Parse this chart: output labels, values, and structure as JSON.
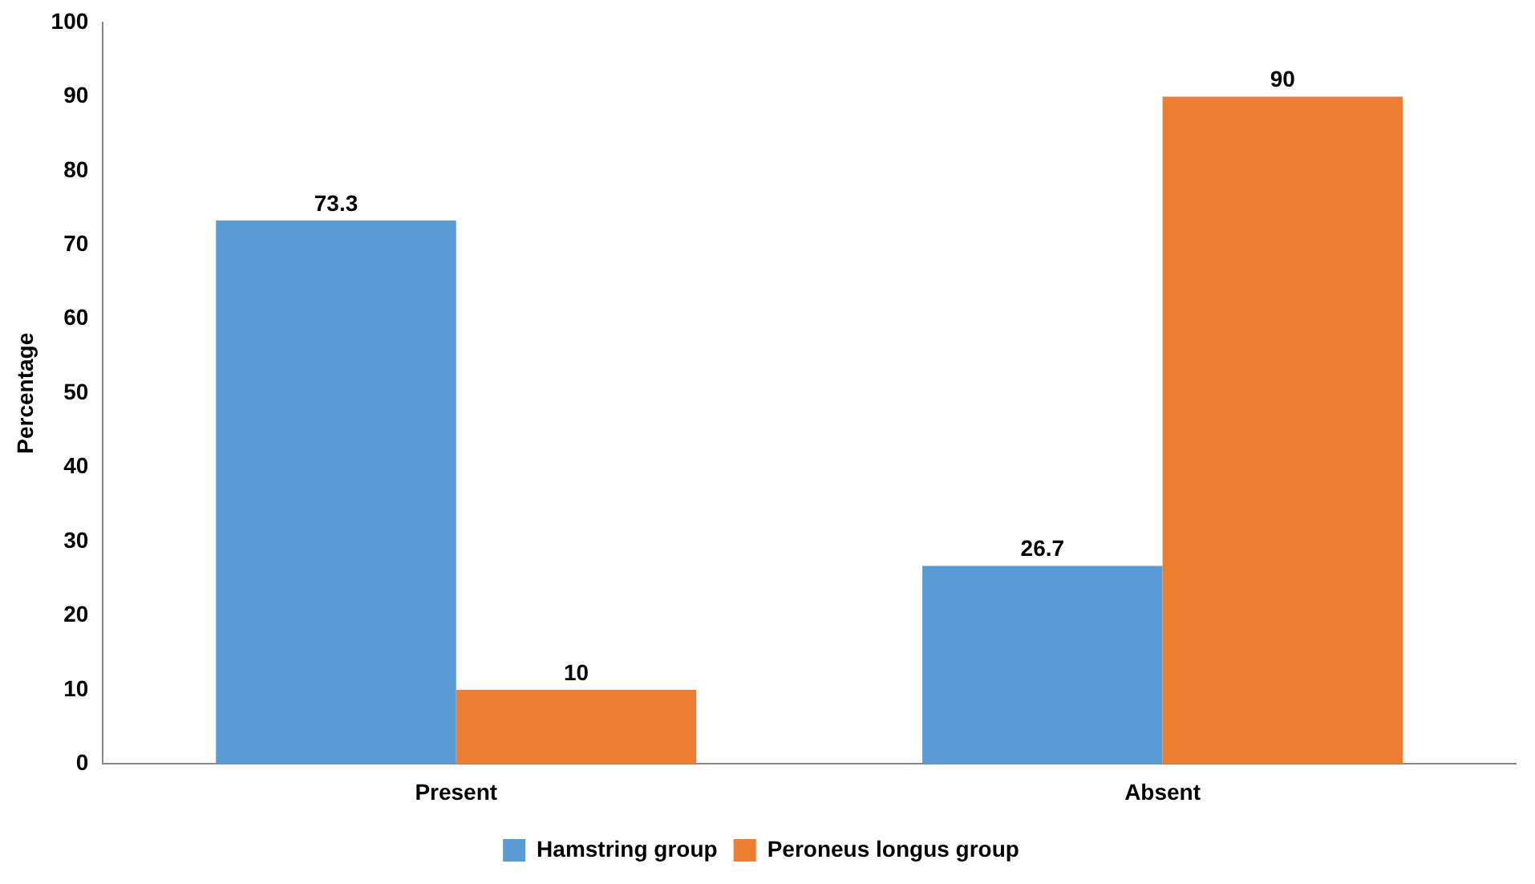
{
  "chart_data": {
    "type": "bar",
    "ylabel": "Percentage",
    "categories": [
      "Present",
      "Absent"
    ],
    "series": [
      {
        "name": "Hamstring group",
        "color": "#5b9bd5",
        "values": [
          73.3,
          26.7
        ]
      },
      {
        "name": "Peroneus longus group",
        "color": "#ed7d31",
        "values": [
          10,
          90
        ]
      }
    ],
    "ylim": [
      0,
      100
    ],
    "yticks": [
      0,
      10,
      20,
      30,
      40,
      50,
      60,
      70,
      80,
      90,
      100
    ],
    "grid": false,
    "legend": "bottom",
    "data_labels": true
  }
}
